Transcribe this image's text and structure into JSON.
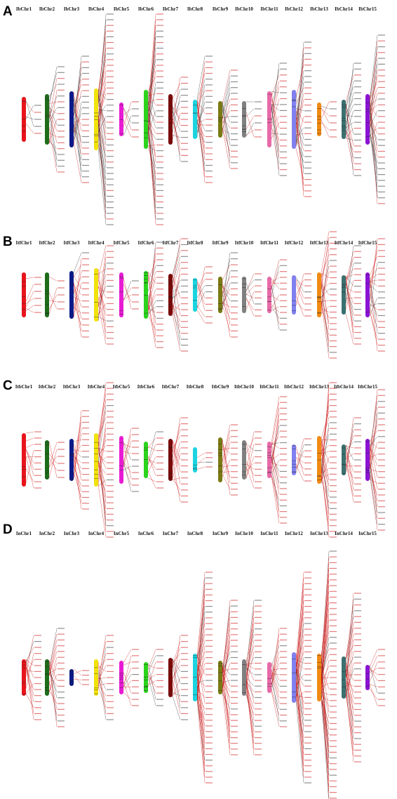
{
  "panels": [
    {
      "letter": "A",
      "prefix": "Ib",
      "chromosomes": [
        "IbChr1",
        "IbChr2",
        "IbChr3",
        "IbChr4",
        "IbChr5",
        "IbChr6",
        "IbChr7",
        "IbChr8",
        "IbChr9",
        "IbChr10",
        "IbChr11",
        "IbChr12",
        "IbChr13",
        "IbChr14",
        "IbChr15"
      ]
    },
    {
      "letter": "B",
      "prefix": "Itf",
      "chromosomes": [
        "ItfChr1",
        "ItfChr2",
        "ItfChr3",
        "ItfChr4",
        "ItfChr5",
        "ItfChr6",
        "ItfChr7",
        "ItfChr8",
        "ItfChr9",
        "ItfChr10",
        "ItfChr11",
        "ItfChr12",
        "ItfChr13",
        "ItfChr14",
        "ItfChr15"
      ]
    },
    {
      "letter": "C",
      "prefix": "Itb",
      "chromosomes": [
        "ItbChr1",
        "ItbChr2",
        "ItbChr3",
        "ItbChr4",
        "ItbChr5",
        "ItbChr6",
        "ItbChr7",
        "ItbChr8",
        "ItbChr9",
        "ItbChr10",
        "ItbChr11",
        "ItbChr12",
        "ItbChr13",
        "ItbChr14",
        "ItbChr15"
      ]
    },
    {
      "letter": "D",
      "prefix": "In",
      "chromosomes": [
        "InChr1",
        "InChr2",
        "InChr3",
        "InChr4",
        "InChr5",
        "InChr6",
        "InChr7",
        "InChr8",
        "InChr9",
        "InChr10",
        "InChr11",
        "InChr12",
        "InChr13",
        "InChr14",
        "InChr15"
      ]
    }
  ],
  "chromosome_colors": [
    "#e8141c",
    "#1e6b1a",
    "#0a1a8a",
    "#f2e20c",
    "#e81cd4",
    "#2ad41c",
    "#7a0a0a",
    "#1ad4e0",
    "#7a7a14",
    "#808080",
    "#e86aa8",
    "#8080f0",
    "#f08a14",
    "#3a7070",
    "#8a14d4"
  ],
  "link_colors": {
    "primary": "#cc1111",
    "secondary": "#333333"
  }
}
